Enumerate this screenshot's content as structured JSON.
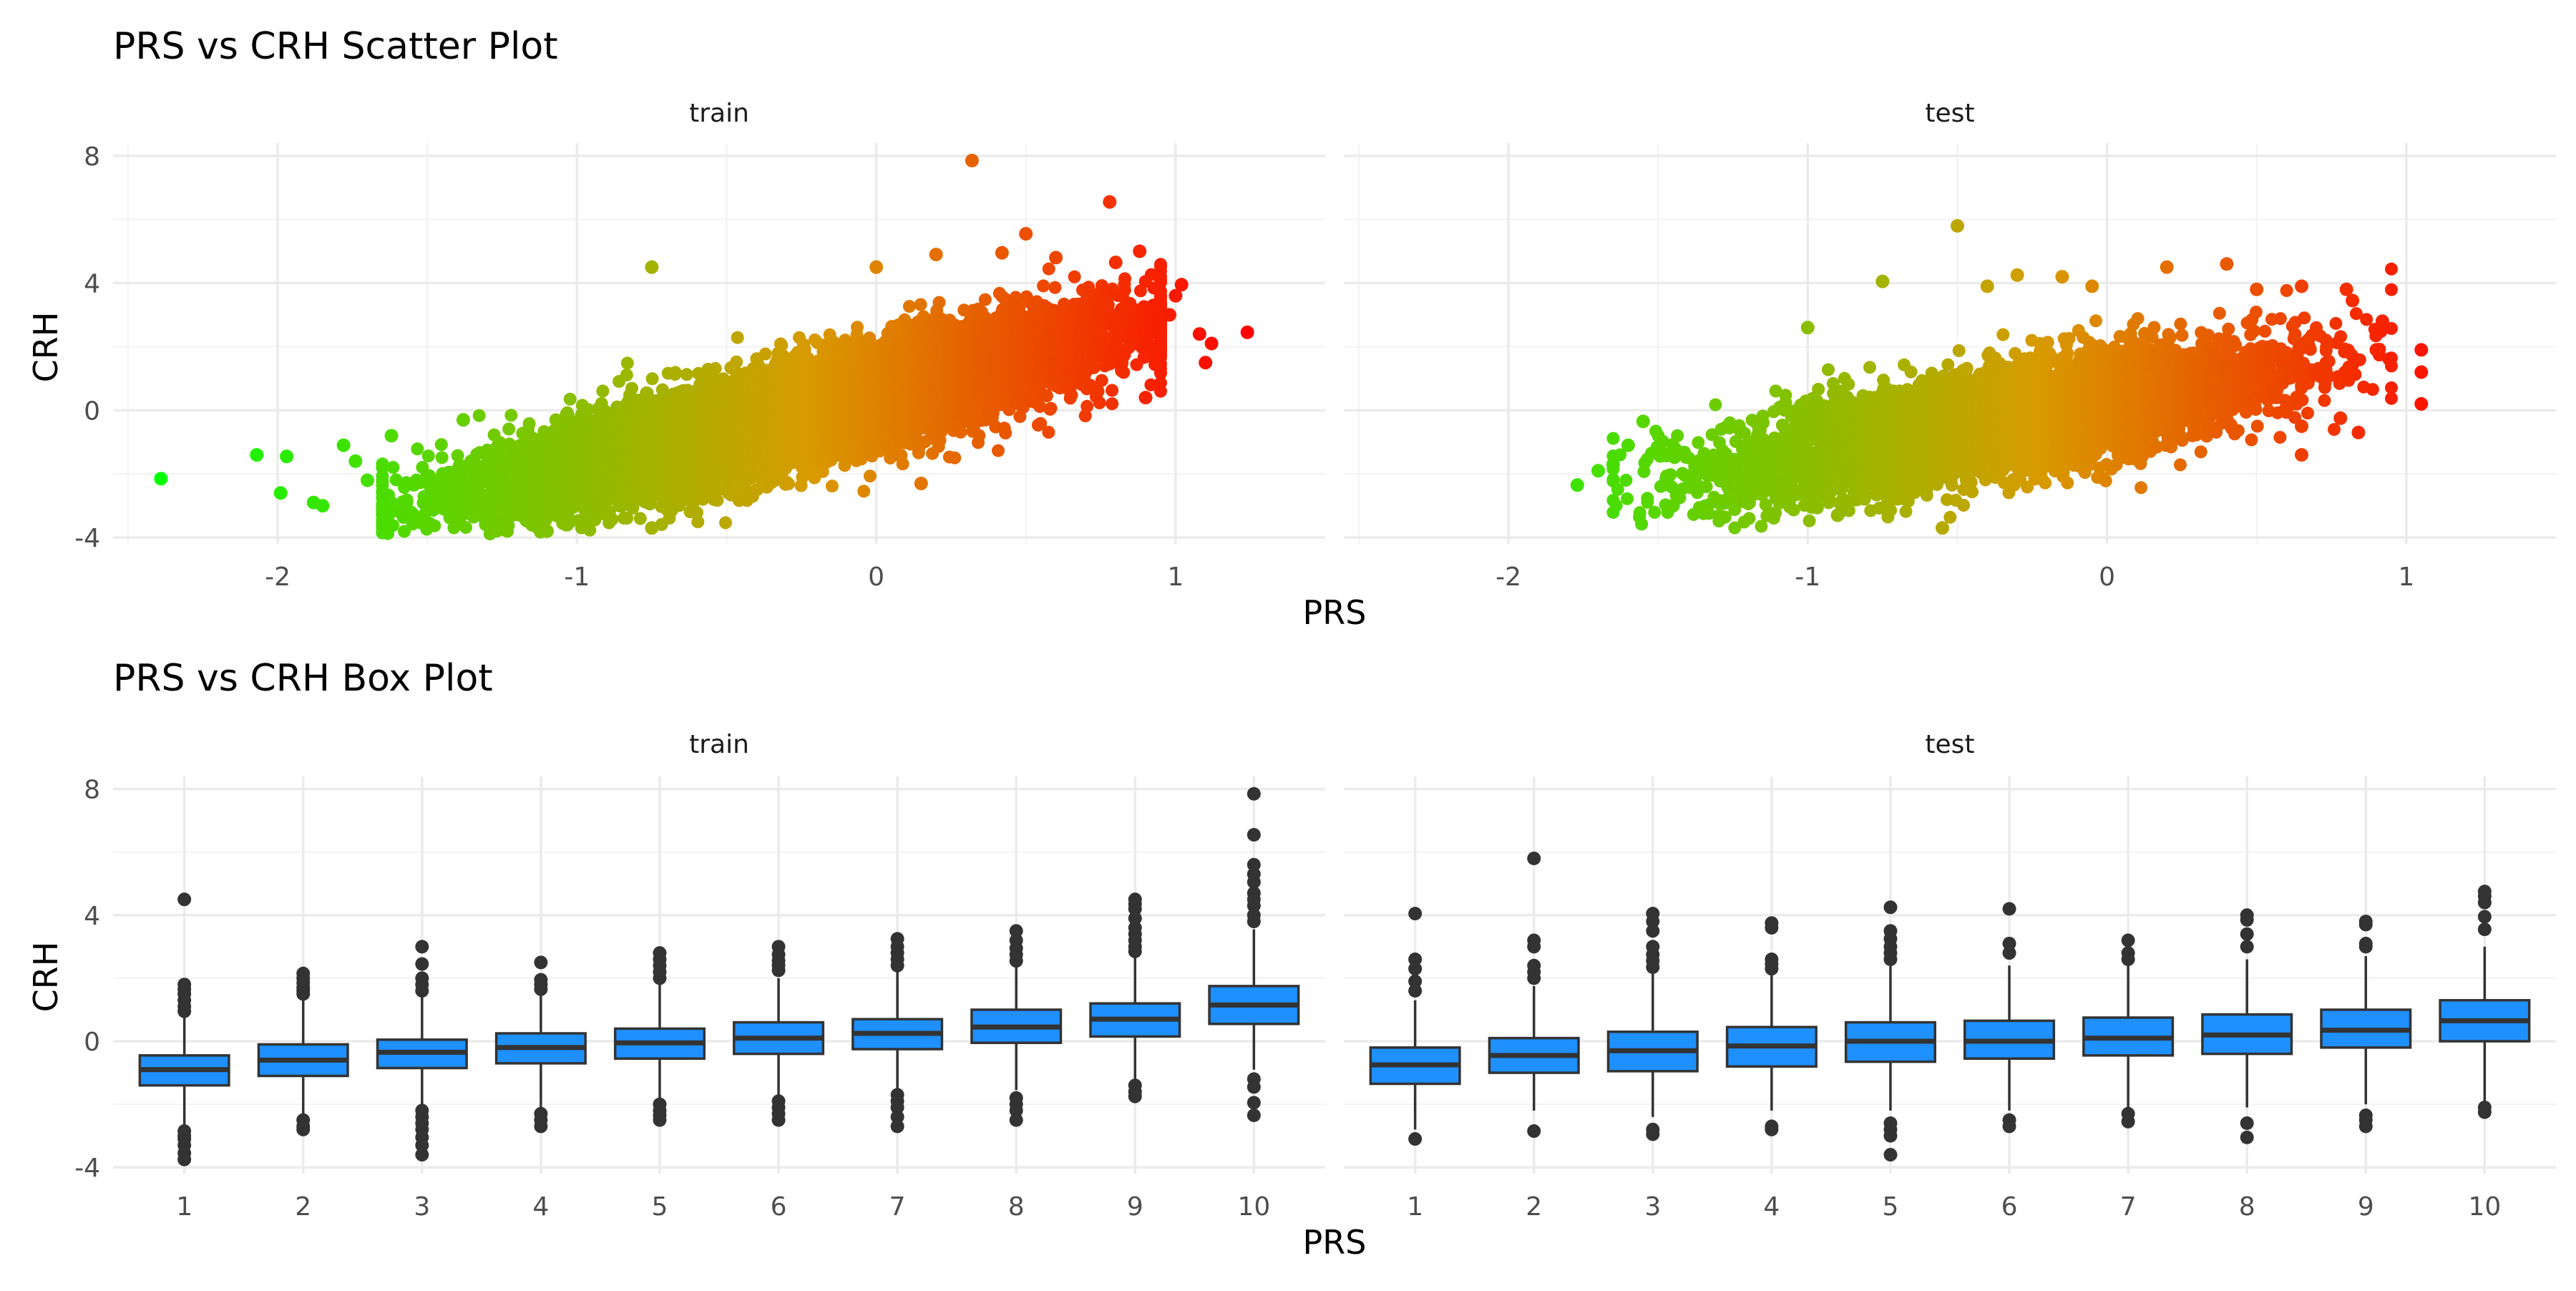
{
  "chart_data": [
    {
      "type": "scatter",
      "title": "PRS vs CRH Scatter Plot",
      "xlabel": "PRS",
      "ylabel": "CRH",
      "xlim": [
        -2.55,
        1.5
      ],
      "ylim": [
        -4.2,
        8.4
      ],
      "x_ticks": [
        -2,
        -1,
        0,
        1
      ],
      "y_ticks": [
        -4,
        0,
        4,
        8
      ],
      "grid": true,
      "legend": "none",
      "color_gradient": {
        "low": "#00ff00",
        "mid": "#d89a00",
        "high": "#ff0000"
      },
      "facets": [
        {
          "label": "train",
          "trend": {
            "slope": 2.45,
            "intercept": 0.3,
            "noise_sd": 0.75,
            "x_mean": -0.25,
            "x_sd": 0.5,
            "n": 11000
          },
          "outliers": [
            {
              "x": -2.39,
              "y": -2.15
            },
            {
              "x": -2.07,
              "y": -1.4
            },
            {
              "x": -1.97,
              "y": -1.45
            },
            {
              "x": -1.99,
              "y": -2.6
            },
            {
              "x": -1.88,
              "y": -2.9
            },
            {
              "x": -1.85,
              "y": -3.0
            },
            {
              "x": -1.78,
              "y": -1.1
            },
            {
              "x": -1.74,
              "y": -1.6
            },
            {
              "x": -1.7,
              "y": -2.2
            },
            {
              "x": -1.62,
              "y": -0.8
            },
            {
              "x": -1.38,
              "y": -0.3
            },
            {
              "x": -1.15,
              "y": -3.6
            },
            {
              "x": -1.1,
              "y": -3.8
            },
            {
              "x": -0.75,
              "y": 4.5
            },
            {
              "x": -0.75,
              "y": -3.7
            },
            {
              "x": 0.0,
              "y": 4.5
            },
            {
              "x": 0.2,
              "y": 4.9
            },
            {
              "x": 0.32,
              "y": 7.85
            },
            {
              "x": 0.42,
              "y": 4.95
            },
            {
              "x": 0.5,
              "y": 5.55
            },
            {
              "x": 0.6,
              "y": 4.8
            },
            {
              "x": 0.78,
              "y": 6.55
            },
            {
              "x": 0.8,
              "y": 4.65
            },
            {
              "x": 0.88,
              "y": 5.0
            },
            {
              "x": 0.85,
              "y": 3.2
            },
            {
              "x": 0.98,
              "y": 3.0
            },
            {
              "x": 1.0,
              "y": 3.6
            },
            {
              "x": 1.02,
              "y": 3.95
            },
            {
              "x": 1.08,
              "y": 2.4
            },
            {
              "x": 1.1,
              "y": 1.5
            },
            {
              "x": 1.12,
              "y": 2.1
            },
            {
              "x": 1.24,
              "y": 2.45
            },
            {
              "x": 0.9,
              "y": 0.4
            },
            {
              "x": 0.15,
              "y": -2.3
            }
          ]
        },
        {
          "label": "test",
          "trend": {
            "slope": 1.8,
            "intercept": 0.1,
            "noise_sd": 0.8,
            "x_mean": -0.35,
            "x_sd": 0.45,
            "n": 5500
          },
          "outliers": [
            {
              "x": -1.77,
              "y": -2.35
            },
            {
              "x": -1.7,
              "y": -1.9
            },
            {
              "x": -1.65,
              "y": -1.7
            },
            {
              "x": -1.6,
              "y": -1.1
            },
            {
              "x": -1.55,
              "y": -0.35
            },
            {
              "x": -1.45,
              "y": -3.0
            },
            {
              "x": -1.3,
              "y": -2.9
            },
            {
              "x": -1.0,
              "y": 2.6
            },
            {
              "x": -0.75,
              "y": 4.05
            },
            {
              "x": -0.5,
              "y": 5.8
            },
            {
              "x": -0.55,
              "y": -3.7
            },
            {
              "x": -0.4,
              "y": 3.9
            },
            {
              "x": -0.3,
              "y": 4.25
            },
            {
              "x": -0.15,
              "y": 4.2
            },
            {
              "x": -0.05,
              "y": 3.9
            },
            {
              "x": 0.2,
              "y": 4.5
            },
            {
              "x": 0.4,
              "y": 4.6
            },
            {
              "x": 0.5,
              "y": 3.8
            },
            {
              "x": 0.65,
              "y": 3.9
            },
            {
              "x": 0.8,
              "y": 3.8
            },
            {
              "x": 0.82,
              "y": 3.45
            },
            {
              "x": 0.92,
              "y": 2.8
            },
            {
              "x": 0.78,
              "y": -0.25
            },
            {
              "x": 0.84,
              "y": -0.7
            },
            {
              "x": 0.65,
              "y": -0.5
            },
            {
              "x": 0.6,
              "y": 1.8
            },
            {
              "x": 1.05,
              "y": 1.9
            },
            {
              "x": 1.05,
              "y": 1.2
            },
            {
              "x": 1.05,
              "y": 0.2
            },
            {
              "x": 0.9,
              "y": 1.9
            },
            {
              "x": 0.65,
              "y": -1.4
            },
            {
              "x": -0.9,
              "y": -3.3
            }
          ]
        }
      ]
    },
    {
      "type": "box",
      "title": "PRS vs CRH Box Plot",
      "xlabel": "PRS",
      "ylabel": "CRH",
      "categories": [
        "1",
        "2",
        "3",
        "4",
        "5",
        "6",
        "7",
        "8",
        "9",
        "10"
      ],
      "ylim": [
        -4.2,
        8.4
      ],
      "y_ticks": [
        -4,
        0,
        4,
        8
      ],
      "grid": true,
      "box_fill": "#1e90ff",
      "box_line": "#333333",
      "facets": [
        {
          "label": "train",
          "boxes": [
            {
              "min": -2.7,
              "q1": -1.4,
              "median": -0.9,
              "q3": -0.45,
              "max": 0.95,
              "outliers": [
                4.5,
                1.8,
                1.65,
                1.5,
                1.3,
                1.1,
                0.95,
                -2.85,
                -3.0,
                -3.1,
                -3.3,
                -3.55,
                -3.75
              ]
            },
            {
              "min": -2.5,
              "q1": -1.1,
              "median": -0.6,
              "q3": -0.1,
              "max": 1.4,
              "outliers": [
                2.15,
                2.0,
                1.85,
                1.7,
                1.6,
                1.5,
                -2.5,
                -2.7,
                -2.8
              ]
            },
            {
              "min": -2.1,
              "q1": -0.85,
              "median": -0.35,
              "q3": 0.05,
              "max": 1.4,
              "outliers": [
                3.0,
                2.45,
                2.0,
                1.8,
                1.6,
                -2.2,
                -2.4,
                -2.6,
                -2.8,
                -3.05,
                -3.3,
                -3.6
              ]
            },
            {
              "min": -2.2,
              "q1": -0.7,
              "median": -0.2,
              "q3": 0.25,
              "max": 1.5,
              "outliers": [
                2.5,
                1.95,
                1.8,
                1.65,
                -2.3,
                -2.5,
                -2.7
              ]
            },
            {
              "min": -2.0,
              "q1": -0.55,
              "median": -0.05,
              "q3": 0.4,
              "max": 1.8,
              "outliers": [
                2.8,
                2.6,
                2.4,
                2.2,
                2.0,
                -2.0,
                -2.2,
                -2.35,
                -2.5
              ]
            },
            {
              "min": -1.9,
              "q1": -0.4,
              "median": 0.1,
              "q3": 0.6,
              "max": 2.0,
              "outliers": [
                3.0,
                2.75,
                2.55,
                2.4,
                2.25,
                -1.9,
                -2.1,
                -2.3,
                -2.5
              ]
            },
            {
              "min": -1.6,
              "q1": -0.25,
              "median": 0.25,
              "q3": 0.7,
              "max": 2.2,
              "outliers": [
                3.25,
                3.0,
                2.8,
                2.6,
                2.4,
                -1.7,
                -1.9,
                -2.1,
                -2.4,
                -2.7
              ]
            },
            {
              "min": -1.55,
              "q1": -0.05,
              "median": 0.45,
              "q3": 1.0,
              "max": 2.4,
              "outliers": [
                3.5,
                3.2,
                2.95,
                2.75,
                2.55,
                -1.8,
                -2.0,
                -2.2,
                -2.5
              ]
            },
            {
              "min": -1.3,
              "q1": 0.15,
              "median": 0.7,
              "q3": 1.2,
              "max": 2.7,
              "outliers": [
                4.5,
                4.35,
                4.2,
                3.9,
                3.6,
                3.4,
                3.2,
                3.0,
                2.85,
                -1.4,
                -1.6,
                -1.75
              ]
            },
            {
              "min": -0.9,
              "q1": 0.55,
              "median": 1.15,
              "q3": 1.75,
              "max": 3.55,
              "outliers": [
                7.85,
                6.55,
                5.6,
                5.3,
                5.05,
                4.7,
                4.5,
                4.3,
                4.0,
                3.8,
                -1.2,
                -1.45,
                -1.95,
                -2.35
              ]
            }
          ]
        },
        {
          "label": "test",
          "boxes": [
            {
              "min": -2.8,
              "q1": -1.35,
              "median": -0.75,
              "q3": -0.2,
              "max": 1.3,
              "outliers": [
                4.05,
                2.6,
                2.3,
                1.9,
                1.6,
                -3.1
              ]
            },
            {
              "min": -2.2,
              "q1": -1.0,
              "median": -0.45,
              "q3": 0.1,
              "max": 1.75,
              "outliers": [
                5.8,
                3.2,
                3.0,
                2.4,
                2.2,
                2.0,
                -2.85
              ]
            },
            {
              "min": -2.4,
              "q1": -0.95,
              "median": -0.3,
              "q3": 0.3,
              "max": 2.2,
              "outliers": [
                4.05,
                3.8,
                3.5,
                3.0,
                2.75,
                2.55,
                2.35,
                -2.8,
                -2.95
              ]
            },
            {
              "min": -2.2,
              "q1": -0.8,
              "median": -0.15,
              "q3": 0.45,
              "max": 2.2,
              "outliers": [
                3.75,
                3.6,
                2.6,
                2.45,
                2.3,
                -2.7,
                -2.8
              ]
            },
            {
              "min": -2.2,
              "q1": -0.65,
              "median": 0.0,
              "q3": 0.6,
              "max": 2.4,
              "outliers": [
                4.25,
                3.5,
                3.25,
                3.0,
                2.8,
                2.6,
                -2.6,
                -2.8,
                -3.0,
                -3.6
              ]
            },
            {
              "min": -2.2,
              "q1": -0.55,
              "median": 0.0,
              "q3": 0.65,
              "max": 2.4,
              "outliers": [
                4.2,
                3.1,
                2.8,
                -2.5,
                -2.7
              ]
            },
            {
              "min": -2.1,
              "q1": -0.45,
              "median": 0.1,
              "q3": 0.75,
              "max": 2.5,
              "outliers": [
                3.2,
                2.8,
                2.6,
                -2.3,
                -2.55
              ]
            },
            {
              "min": -2.1,
              "q1": -0.4,
              "median": 0.2,
              "q3": 0.85,
              "max": 2.6,
              "outliers": [
                4.0,
                3.85,
                3.4,
                3.0,
                -2.6,
                -3.05
              ]
            },
            {
              "min": -2.0,
              "q1": -0.2,
              "median": 0.35,
              "q3": 1.0,
              "max": 2.7,
              "outliers": [
                3.8,
                3.7,
                3.1,
                3.0,
                -2.35,
                -2.5,
                -2.7
              ]
            },
            {
              "min": -1.9,
              "q1": 0.0,
              "median": 0.65,
              "q3": 1.3,
              "max": 3.0,
              "outliers": [
                4.75,
                4.6,
                4.4,
                3.95,
                3.55,
                -2.1,
                -2.25
              ]
            }
          ]
        }
      ]
    }
  ]
}
